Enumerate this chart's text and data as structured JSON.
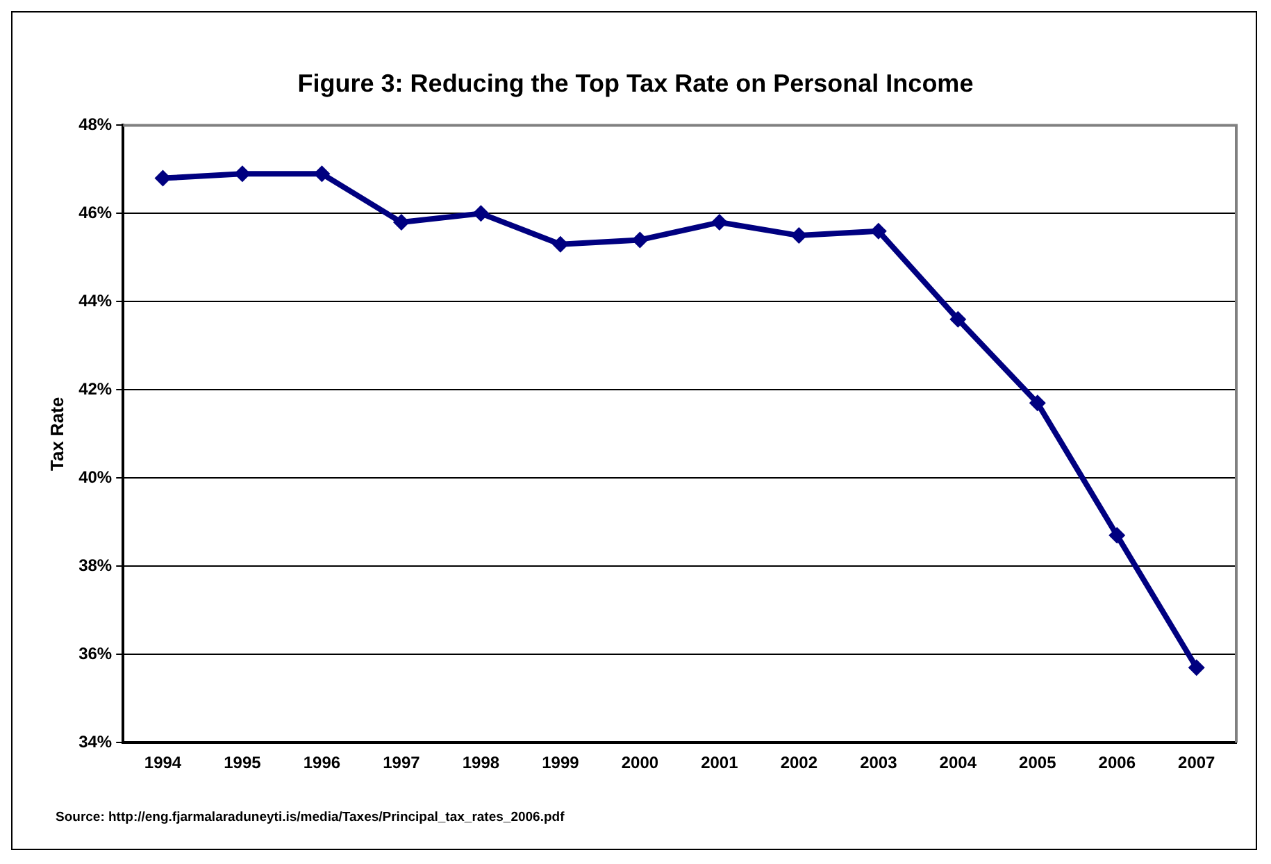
{
  "chart_data": {
    "type": "line",
    "title": "Figure 3: Reducing the Top Tax Rate on Personal Income",
    "ylabel": "Tax Rate",
    "categories": [
      "1994",
      "1995",
      "1996",
      "1997",
      "1998",
      "1999",
      "2000",
      "2001",
      "2002",
      "2003",
      "2004",
      "2005",
      "2006",
      "2007"
    ],
    "series": [
      {
        "color": "#000080",
        "values": [
          46.8,
          46.9,
          46.9,
          45.8,
          46.0,
          45.3,
          45.4,
          45.8,
          45.5,
          45.6,
          43.6,
          41.7,
          38.7,
          35.7
        ]
      }
    ],
    "ylim": [
      34,
      48
    ],
    "yticks": [
      {
        "value": 34,
        "label": "34%"
      },
      {
        "value": 36,
        "label": "36%"
      },
      {
        "value": 38,
        "label": "38%"
      },
      {
        "value": 40,
        "label": "40%"
      },
      {
        "value": 42,
        "label": "42%"
      },
      {
        "value": 44,
        "label": "44%"
      },
      {
        "value": 46,
        "label": "46%"
      },
      {
        "value": 48,
        "label": "48%"
      }
    ],
    "grid": "y",
    "marker": "diamond",
    "line_style": "solid",
    "legend": false,
    "annotations": [
      "Source: http://eng.fjarmalaraduneyti.is/media/Taxes/Principal_tax_rates_2006.pdf"
    ]
  }
}
